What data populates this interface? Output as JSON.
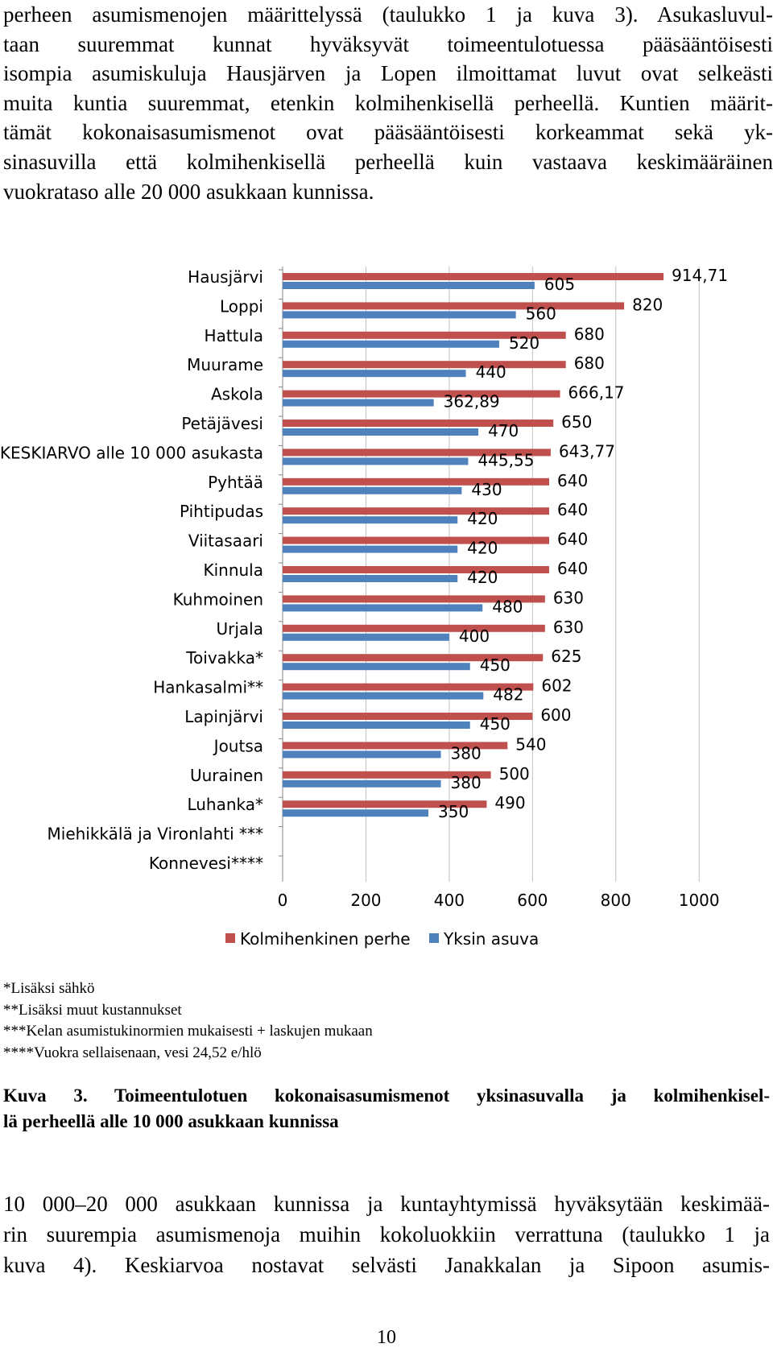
{
  "intro_lines": [
    "perheen asumismenojen määrittelyssä (taulukko 1 ja kuva 3). Asukasluvul-",
    "taan suuremmat kunnat hyväksyvät toimeentulotuessa pääsääntöisesti",
    "isompia asumiskuluja Hausjärven ja Lopen ilmoittamat luvut ovat selkeästi",
    "muita kuntia suuremmat, etenkin kolmihenkisellä perheellä. Kuntien määrit-",
    "tämät kokonaisasumismenot ovat pääsääntöisesti korkeammat sekä yk-",
    "sinasuvilla että kolmihenkisellä perheellä kuin vastaava keskimääräinen",
    "vuokrataso alle 20 000 asukkaan kunnissa."
  ],
  "chart_data": {
    "type": "bar",
    "orientation": "horizontal",
    "categories": [
      "Hausjärvi",
      "Loppi",
      "Hattula",
      "Muurame",
      "Askola",
      "Petäjävesi",
      "KESKIARVO alle 10 000 asukasta",
      "Pyhtää",
      "Pihtipudas",
      "Viitasaari",
      "Kinnula",
      "Kuhmoinen",
      "Urjala",
      "Toivakka*",
      "Hankasalmi**",
      "Lapinjärvi",
      "Joutsa",
      "Uurainen",
      "Luhanka*",
      "Miehikkälä ja Vironlahti ***",
      "Konnevesi****"
    ],
    "series": [
      {
        "name": "Kolmihenkinen perhe",
        "color": "#c0504d",
        "values": [
          914.71,
          820,
          680,
          680,
          666.17,
          650,
          643.77,
          640,
          640,
          640,
          640,
          630,
          630,
          625,
          602,
          600,
          540,
          500,
          490,
          null,
          null
        ],
        "labels": [
          "914,71",
          "820",
          "680",
          "680",
          "666,17",
          "650",
          "643,77",
          "640",
          "640",
          "640",
          "640",
          "630",
          "630",
          "625",
          "602",
          "600",
          "540",
          "500",
          "490",
          "",
          ""
        ]
      },
      {
        "name": "Yksin asuva",
        "color": "#4f81bd",
        "values": [
          605,
          560,
          520,
          440,
          362.89,
          470,
          445.55,
          430,
          420,
          420,
          420,
          480,
          400,
          450,
          482,
          450,
          380,
          380,
          350,
          null,
          null
        ],
        "labels": [
          "605",
          "560",
          "520",
          "440",
          "362,89",
          "470",
          "445,55",
          "430",
          "420",
          "420",
          "420",
          "480",
          "400",
          "450",
          "482",
          "450",
          "380",
          "380",
          "350",
          "",
          ""
        ]
      }
    ],
    "xlim": [
      0,
      1000
    ],
    "xticks": [
      0,
      200,
      400,
      600,
      800,
      1000
    ],
    "xtick_labels": [
      "0",
      "200",
      "400",
      "600",
      "800",
      "1000"
    ],
    "grid": true,
    "legend_position": "bottom"
  },
  "footnotes": [
    "*Lisäksi sähkö",
    "**Lisäksi muut kustannukset",
    "***Kelan asumistukinormien mukaisesti + laskujen mukaan",
    "****Vuokra sellaisenaan, vesi 24,52 e/hlö"
  ],
  "caption_lines": [
    "Kuva 3. Toimeentulotuen kokonaisasumismenot yksinasuvalla ja kolmihenkisel-",
    "lä perheellä alle 10 000 asukkaan kunnissa"
  ],
  "closing_lines": [
    "10 000–20 000 asukkaan kunnissa ja kuntayhtymissä hyväksytään keskimää-",
    "rin suurempia asumismenoja muihin kokoluokkiin verrattuna (taulukko 1 ja",
    "kuva 4). Keskiarvoa nostavat selvästi Janakkalan ja Sipoon asumis-"
  ],
  "page_number": "10"
}
